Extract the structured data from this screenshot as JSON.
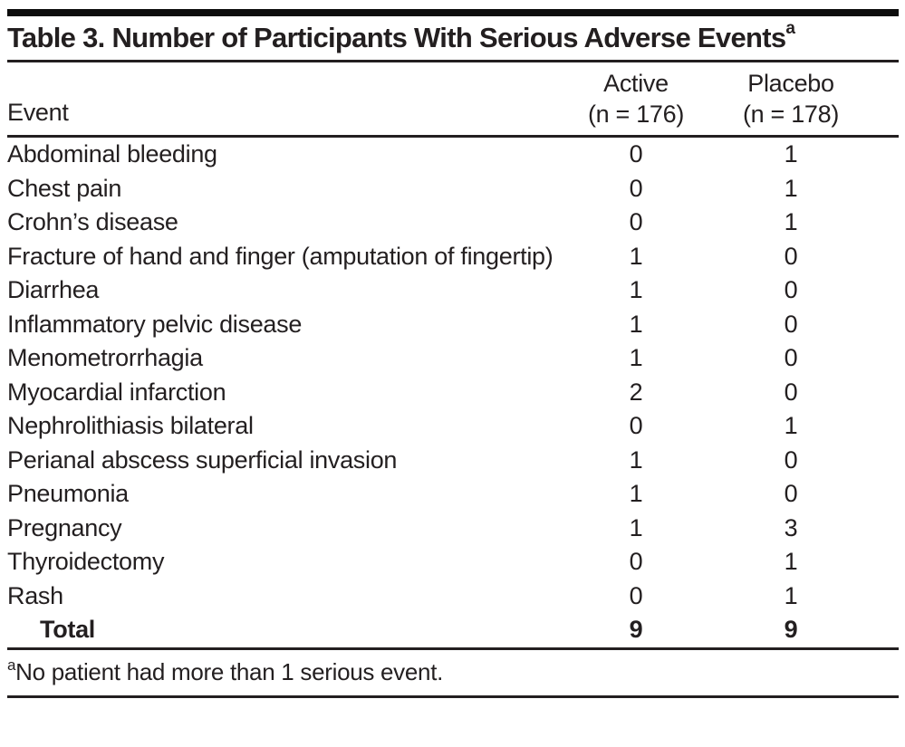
{
  "table": {
    "title": "Table 3. Number of Participants With Serious Adverse Events",
    "title_superscript": "a",
    "columns": {
      "event": "Event",
      "active_line1": "Active",
      "active_line2": "(n = 176)",
      "placebo_line1": "Placebo",
      "placebo_line2": "(n = 178)"
    },
    "rows": [
      {
        "event": "Abdominal bleeding",
        "active": "0",
        "placebo": "1"
      },
      {
        "event": "Chest pain",
        "active": "0",
        "placebo": "1"
      },
      {
        "event": "Crohn’s disease",
        "active": "0",
        "placebo": "1"
      },
      {
        "event": "Fracture of hand and finger (amputation of fingertip)",
        "active": "1",
        "placebo": "0"
      },
      {
        "event": "Diarrhea",
        "active": "1",
        "placebo": "0"
      },
      {
        "event": "Inflammatory pelvic disease",
        "active": "1",
        "placebo": "0"
      },
      {
        "event": "Menometrorrhagia",
        "active": "1",
        "placebo": "0"
      },
      {
        "event": "Myocardial infarction",
        "active": "2",
        "placebo": "0"
      },
      {
        "event": "Nephrolithiasis bilateral",
        "active": "0",
        "placebo": "1"
      },
      {
        "event": "Perianal abscess superficial invasion",
        "active": "1",
        "placebo": "0"
      },
      {
        "event": "Pneumonia",
        "active": "1",
        "placebo": "0"
      },
      {
        "event": "Pregnancy",
        "active": "1",
        "placebo": "3"
      },
      {
        "event": "Thyroidectomy",
        "active": "0",
        "placebo": "1"
      },
      {
        "event": "Rash",
        "active": "0",
        "placebo": "1"
      }
    ],
    "total": {
      "label": "Total",
      "active": "9",
      "placebo": "9"
    },
    "footnote_marker": "a",
    "footnote_text": "No patient had more than 1 serious event."
  },
  "colors": {
    "text": "#231f20",
    "rule": "#231f20",
    "top_bar": "#0d0d0d",
    "background": "#ffffff"
  }
}
